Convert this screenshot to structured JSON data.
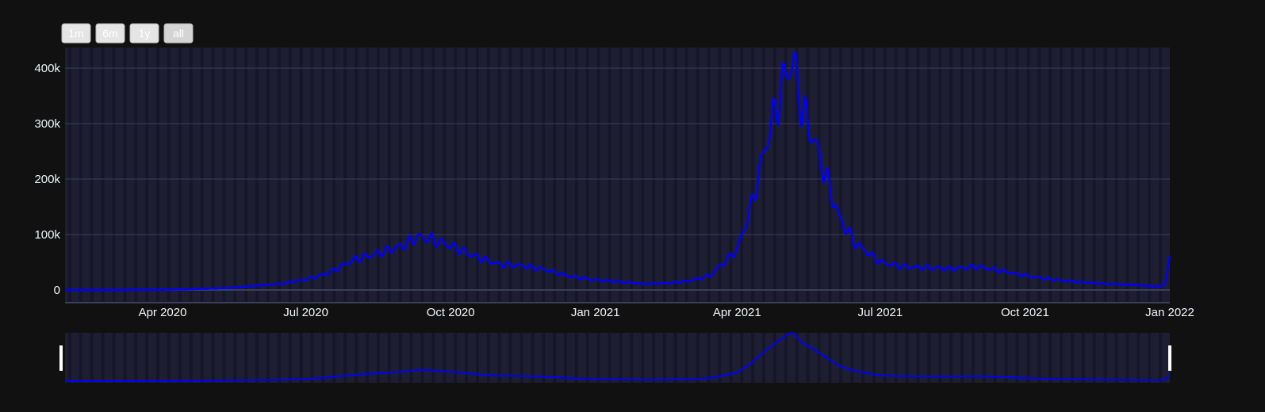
{
  "colors": {
    "background": "#111111",
    "plot_background": "#1e1e32",
    "gridline": "#3a3f5a",
    "weekend_band": "#15162a",
    "line": "#0000ff",
    "range_handle": "#ffffff"
  },
  "range_selector": {
    "buttons": [
      {
        "label": "1m",
        "active": false
      },
      {
        "label": "6m",
        "active": false
      },
      {
        "label": "1y",
        "active": false
      },
      {
        "label": "all",
        "active": true
      }
    ]
  },
  "chart_data": {
    "type": "line",
    "title": "",
    "xlabel": "",
    "ylabel": "",
    "xlim": [
      "2020-01-30",
      "2022-01-01"
    ],
    "ylim": [
      0,
      440000
    ],
    "x_tick_labels": [
      "Apr 2020",
      "Jul 2020",
      "Oct 2020",
      "Jan 2021",
      "Apr 2021",
      "Jul 2021",
      "Oct 2021",
      "Jan 2022"
    ],
    "y_tick_labels": [
      "0",
      "100k",
      "200k",
      "300k",
      "400k"
    ],
    "y_ticks": [
      0,
      100000,
      200000,
      300000,
      400000
    ],
    "grid": true,
    "rangeslider": true,
    "x": [
      "2020-01-30",
      "2020-03-01",
      "2020-04-01",
      "2020-04-15",
      "2020-05-01",
      "2020-05-15",
      "2020-06-01",
      "2020-06-15",
      "2020-07-01",
      "2020-07-15",
      "2020-08-01",
      "2020-08-15",
      "2020-09-01",
      "2020-09-10",
      "2020-09-17",
      "2020-10-01",
      "2020-10-15",
      "2020-11-01",
      "2020-11-15",
      "2020-12-01",
      "2020-12-15",
      "2021-01-01",
      "2021-01-15",
      "2021-02-01",
      "2021-02-15",
      "2021-03-01",
      "2021-03-15",
      "2021-04-01",
      "2021-04-10",
      "2021-04-20",
      "2021-04-28",
      "2021-05-03",
      "2021-05-07",
      "2021-05-12",
      "2021-05-20",
      "2021-05-28",
      "2021-06-05",
      "2021-06-15",
      "2021-07-01",
      "2021-07-15",
      "2021-08-01",
      "2021-08-15",
      "2021-09-01",
      "2021-09-15",
      "2021-10-01",
      "2021-10-15",
      "2021-11-01",
      "2021-11-15",
      "2021-12-01",
      "2021-12-15",
      "2021-12-26",
      "2021-12-29",
      "2022-01-01"
    ],
    "values": [
      0,
      50,
      500,
      1000,
      2500,
      4000,
      8000,
      11000,
      19000,
      30000,
      55000,
      65000,
      80000,
      96000,
      93000,
      80000,
      62000,
      46000,
      44000,
      36000,
      25000,
      18000,
      15000,
      11000,
      12000,
      16000,
      26000,
      72000,
      150000,
      270000,
      350000,
      400000,
      410000,
      330000,
      270000,
      200000,
      130000,
      85000,
      50000,
      42000,
      40000,
      38000,
      42000,
      35000,
      26000,
      20000,
      15000,
      12000,
      10000,
      8000,
      6000,
      12000,
      55000
    ]
  }
}
